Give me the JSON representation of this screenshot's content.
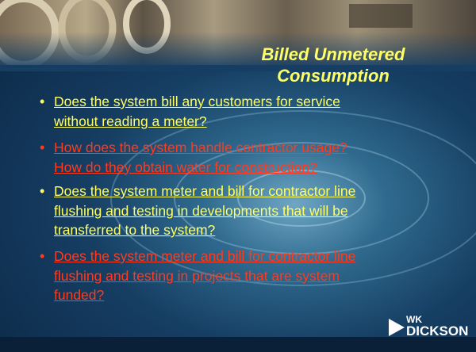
{
  "slide": {
    "title_lines": [
      "Billed Unmetered",
      "Consumption"
    ],
    "bullets": [
      {
        "color": "#ffff66",
        "lines": [
          "Does the system bill any customers for service",
          "without reading a meter?"
        ]
      },
      {
        "color": "#ff3b1f",
        "lines": [
          "How does the system handle contractor usage?",
          "How do they obtain water for construction?"
        ]
      },
      {
        "color": "#ffff66",
        "lines": [
          "Does the system meter and bill for contractor line",
          "flushing and testing in developments that will be",
          "transferred to the system?"
        ]
      },
      {
        "color": "#ff3b1f",
        "lines": [
          "Does the system meter and bill for contractor line",
          "flushing and testing in projects that are system",
          "funded?"
        ]
      }
    ],
    "logo": {
      "top": "WK",
      "bottom": "DICKSON"
    }
  }
}
